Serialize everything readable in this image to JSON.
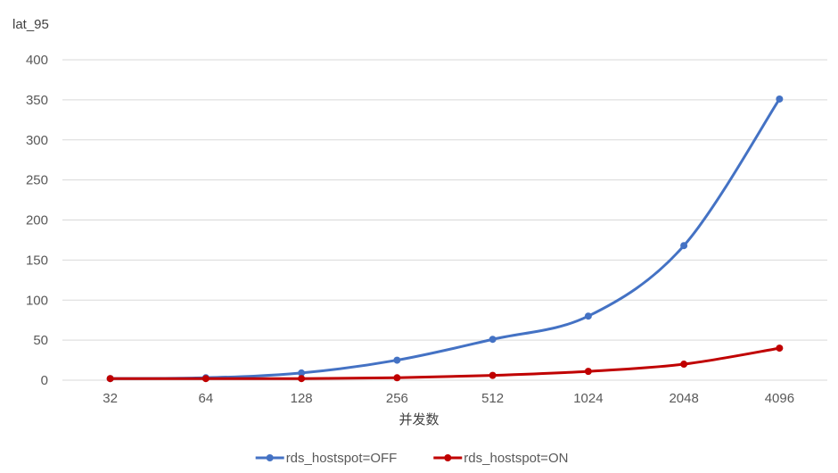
{
  "chart_data": {
    "type": "line",
    "title": "",
    "ylabel": "lat_95",
    "xlabel": "并发数",
    "categories": [
      "32",
      "64",
      "128",
      "256",
      "512",
      "1024",
      "2048",
      "4096"
    ],
    "ylim": [
      0,
      400
    ],
    "yticks": [
      0,
      50,
      100,
      150,
      200,
      250,
      300,
      350,
      400
    ],
    "grid": true,
    "legend_position": "bottom",
    "series": [
      {
        "name": "rds_hostspot=OFF",
        "color": "#4472C4",
        "values": [
          2,
          3,
          9,
          25,
          51,
          80,
          168,
          351
        ]
      },
      {
        "name": "rds_hostspot=ON",
        "color": "#C00000",
        "values": [
          2,
          2,
          2,
          3,
          6,
          11,
          20,
          40
        ]
      }
    ]
  }
}
